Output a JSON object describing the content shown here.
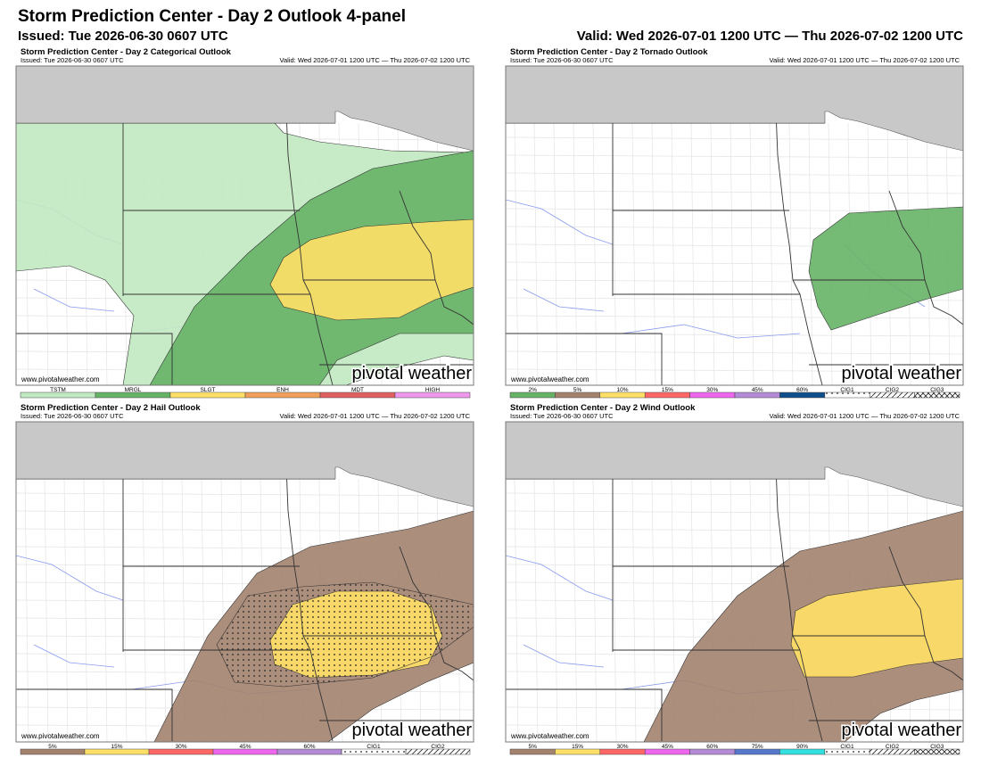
{
  "header": {
    "title": "Storm Prediction Center - Day 2 Outlook 4-panel",
    "issued": "Issued: Tue 2026-06-30 0607 UTC",
    "valid": "Valid: Wed 2026-07-01 1200 UTC — Thu 2026-07-02 1200 UTC"
  },
  "panels": [
    {
      "title": "Storm Prediction Center - Day 2 Categorical Outlook",
      "issued": "Issued: Tue 2026-06-30 0607 UTC",
      "valid": "Valid: Wed 2026-07-01 1200 UTC — Thu 2026-07-02 1200 UTC",
      "url": "www.pivotalweather.com",
      "watermark": "pivotal weather",
      "legend": [
        {
          "label": "TSTM",
          "color": "#c1e9c1"
        },
        {
          "label": "MRGL",
          "color": "#66b266"
        },
        {
          "label": "SLGT",
          "color": "#ffe066"
        },
        {
          "label": "ENH",
          "color": "#f0a05a"
        },
        {
          "label": "MDT",
          "color": "#e06060"
        },
        {
          "label": "HIGH",
          "color": "#ee99ee"
        }
      ]
    },
    {
      "title": "Storm Prediction Center - Day 2 Tornado Outlook",
      "issued": "Issued: Tue 2026-06-30 0607 UTC",
      "valid": "Valid: Wed 2026-07-01 1200 UTC — Thu 2026-07-02 1200 UTC",
      "url": "www.pivotalweather.com",
      "watermark": "pivotal weather",
      "legend": [
        {
          "label": "2%",
          "color": "#66b266"
        },
        {
          "label": "5%",
          "color": "#a3826e"
        },
        {
          "label": "10%",
          "color": "#ffe066"
        },
        {
          "label": "15%",
          "color": "#ff6666"
        },
        {
          "label": "30%",
          "color": "#ee66ee"
        },
        {
          "label": "45%",
          "color": "#b38bd6"
        },
        {
          "label": "60%",
          "color": "#104e8b"
        },
        {
          "label": "CIG1",
          "color": "#ffffff",
          "pattern": "dots"
        },
        {
          "label": "CIG2",
          "color": "#ffffff",
          "pattern": "hatch"
        },
        {
          "label": "CIG3",
          "color": "#ffffff",
          "pattern": "cross"
        }
      ]
    },
    {
      "title": "Storm Prediction Center - Day 2 Hail Outlook",
      "issued": "Issued: Tue 2026-06-30 0607 UTC",
      "valid": "Valid: Wed 2026-07-01 1200 UTC — Thu 2026-07-02 1200 UTC",
      "url": "www.pivotalweather.com",
      "watermark": "pivotal weather",
      "legend": [
        {
          "label": "5%",
          "color": "#a3826e"
        },
        {
          "label": "15%",
          "color": "#ffe066"
        },
        {
          "label": "30%",
          "color": "#ff6666"
        },
        {
          "label": "45%",
          "color": "#ee66ee"
        },
        {
          "label": "60%",
          "color": "#b38bd6"
        },
        {
          "label": "CIG1",
          "color": "#ffffff",
          "pattern": "dots"
        },
        {
          "label": "CIG2",
          "color": "#ffffff",
          "pattern": "hatch"
        }
      ]
    },
    {
      "title": "Storm Prediction Center - Day 2 Wind Outlook",
      "issued": "Issued: Tue 2026-06-30 0607 UTC",
      "valid": "Valid: Wed 2026-07-01 1200 UTC — Thu 2026-07-02 1200 UTC",
      "url": "www.pivotalweather.com",
      "watermark": "pivotal weather",
      "legend": [
        {
          "label": "5%",
          "color": "#a3826e"
        },
        {
          "label": "15%",
          "color": "#ffe066"
        },
        {
          "label": "30%",
          "color": "#ff6666"
        },
        {
          "label": "45%",
          "color": "#ee66ee"
        },
        {
          "label": "60%",
          "color": "#b38bd6"
        },
        {
          "label": "75%",
          "color": "#5577cc"
        },
        {
          "label": "90%",
          "color": "#33e0e0"
        },
        {
          "label": "CIG1",
          "color": "#ffffff",
          "pattern": "dots"
        },
        {
          "label": "CIG2",
          "color": "#ffffff",
          "pattern": "hatch"
        },
        {
          "label": "CIG3",
          "color": "#ffffff",
          "pattern": "cross"
        }
      ]
    }
  ]
}
